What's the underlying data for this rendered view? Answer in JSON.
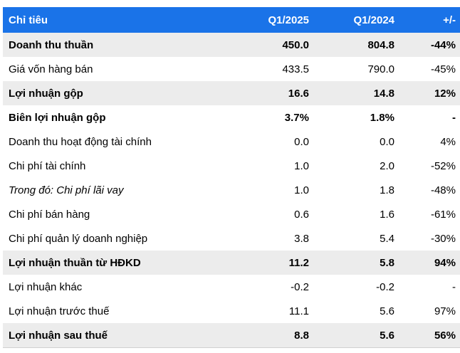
{
  "header": {
    "col_name": "Chỉ tiêu",
    "col_q1_2025": "Q1/2025",
    "col_q1_2024": "Q1/2024",
    "col_change": "+/-"
  },
  "colors": {
    "header_bg": "#1a73e8",
    "shaded_row_bg": "#ececec"
  },
  "rows": [
    {
      "name": "Doanh thu thuần",
      "q1_2025": "450.0",
      "q1_2024": "804.8",
      "change": "-44%",
      "bold": true,
      "shaded": true
    },
    {
      "name": "Giá vốn hàng bán",
      "q1_2025": "433.5",
      "q1_2024": "790.0",
      "change": "-45%",
      "bold": false,
      "shaded": false
    },
    {
      "name": "Lợi nhuận gộp",
      "q1_2025": "16.6",
      "q1_2024": "14.8",
      "change": "12%",
      "bold": true,
      "shaded": true
    },
    {
      "name": "Biên lợi nhuận gộp",
      "q1_2025": "3.7%",
      "q1_2024": "1.8%",
      "change": "-",
      "bold": true,
      "shaded": false
    },
    {
      "name": "Doanh thu hoạt động tài chính",
      "q1_2025": "0.0",
      "q1_2024": "0.0",
      "change": "4%",
      "bold": false,
      "shaded": false
    },
    {
      "name": "Chi phí tài chính",
      "q1_2025": "1.0",
      "q1_2024": "2.0",
      "change": "-52%",
      "bold": false,
      "shaded": false
    },
    {
      "name": "Trong đó: Chi phí lãi vay",
      "q1_2025": "1.0",
      "q1_2024": "1.8",
      "change": "-48%",
      "bold": false,
      "shaded": false,
      "italic": true
    },
    {
      "name": "Chi phí bán hàng",
      "q1_2025": "0.6",
      "q1_2024": "1.6",
      "change": "-61%",
      "bold": false,
      "shaded": false
    },
    {
      "name": "Chi phí quản lý doanh nghiệp",
      "q1_2025": "3.8",
      "q1_2024": "5.4",
      "change": "-30%",
      "bold": false,
      "shaded": false
    },
    {
      "name": "Lợi nhuận thuần từ HĐKD",
      "q1_2025": "11.2",
      "q1_2024": "5.8",
      "change": "94%",
      "bold": true,
      "shaded": true
    },
    {
      "name": "Lợi nhuận khác",
      "q1_2025": "-0.2",
      "q1_2024": "-0.2",
      "change": "-",
      "bold": false,
      "shaded": false
    },
    {
      "name": "Lợi nhuận trước thuế",
      "q1_2025": "11.1",
      "q1_2024": "5.6",
      "change": "97%",
      "bold": false,
      "shaded": false
    },
    {
      "name": "Lợi nhuận sau thuế",
      "q1_2025": "8.8",
      "q1_2024": "5.6",
      "change": "56%",
      "bold": true,
      "shaded": true
    }
  ]
}
